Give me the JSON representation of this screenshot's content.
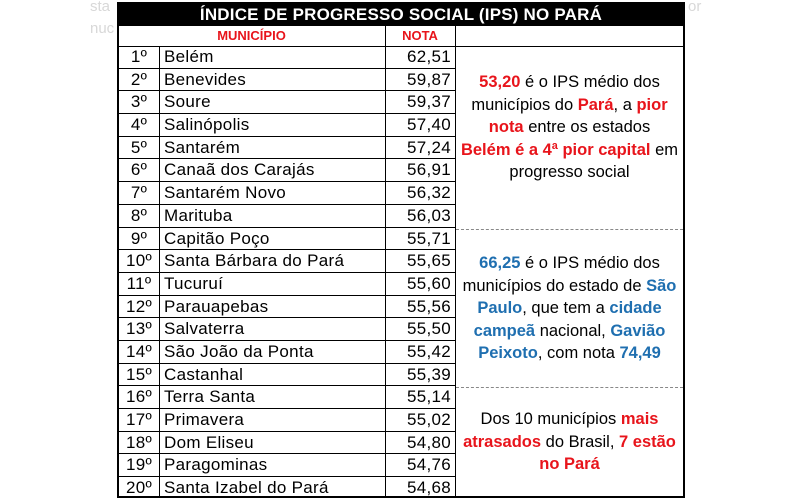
{
  "background_text": {
    "left_1": "sta",
    "left_2": "nuc",
    "right_1": "or",
    "right_2": ""
  },
  "table": {
    "title": "ÍNDICE DE PROGRESSO SOCIAL (IPS) NO PARÁ",
    "header_municipio": "MUNICÍPIO",
    "header_nota": "NOTA",
    "rows": [
      {
        "rank": "1º",
        "municipio": "Belém",
        "nota": "62,51"
      },
      {
        "rank": "2º",
        "municipio": "Benevides",
        "nota": "59,87"
      },
      {
        "rank": "3º",
        "municipio": "Soure",
        "nota": "59,37"
      },
      {
        "rank": "4º",
        "municipio": "Salinópolis",
        "nota": "57,40"
      },
      {
        "rank": "5º",
        "municipio": "Santarém",
        "nota": "57,24"
      },
      {
        "rank": "6º",
        "municipio": "Canaã dos Carajás",
        "nota": "56,91"
      },
      {
        "rank": "7º",
        "municipio": "Santarém Novo",
        "nota": "56,32"
      },
      {
        "rank": "8º",
        "municipio": "Marituba",
        "nota": "56,03"
      },
      {
        "rank": "9º",
        "municipio": "Capitão Poço",
        "nota": "55,71"
      },
      {
        "rank": "10º",
        "municipio": "Santa Bárbara do Pará",
        "nota": "55,65"
      },
      {
        "rank": "11º",
        "municipio": "Tucuruí",
        "nota": "55,60"
      },
      {
        "rank": "12º",
        "municipio": "Parauapebas",
        "nota": "55,56"
      },
      {
        "rank": "13º",
        "municipio": "Salvaterra",
        "nota": "55,50"
      },
      {
        "rank": "14º",
        "municipio": "São João da Ponta",
        "nota": "55,42"
      },
      {
        "rank": "15º",
        "municipio": "Castanhal",
        "nota": "55,39"
      },
      {
        "rank": "16º",
        "municipio": "Terra Santa",
        "nota": "55,14"
      },
      {
        "rank": "17º",
        "municipio": "Primavera",
        "nota": "55,02"
      },
      {
        "rank": "18º",
        "municipio": "Dom Eliseu",
        "nota": "54,80"
      },
      {
        "rank": "19º",
        "municipio": "Paragominas",
        "nota": "54,76"
      },
      {
        "rank": "20º",
        "municipio": "Santa Izabel do Pará",
        "nota": "54,68"
      }
    ]
  },
  "notes": {
    "note1": {
      "value": "53,20",
      "t1": " é o IPS médio dos municípios do ",
      "para": "Pará",
      "t2": ", a ",
      "pior_nota": "pior nota",
      "t3": " entre os estados ",
      "belem_e_a": "Belém é a ",
      "quarta_pior": "4ª pior",
      "capital": "capital",
      "t4": " em progresso social"
    },
    "note2": {
      "value": "66,25",
      "t1": " é o IPS médio dos municípios do estado de ",
      "sao_paulo": "São Paulo",
      "t2": ", que tem a ",
      "cidade_campea": "cidade campeã",
      "t3": " nacional, ",
      "gaviao_peixoto": "Gavião Peixoto",
      "t4": ", com nota ",
      "nota_final": "74,49"
    },
    "note3": {
      "t1": "Dos 10 municípios ",
      "mais_atrasados": "mais atrasados",
      "t2": " do Brasil, ",
      "sete_estao": "7 estão no Pará"
    }
  },
  "colors": {
    "accent_red": "#e8141b",
    "accent_blue": "#1f6fb0",
    "title_bg": "#000000"
  }
}
